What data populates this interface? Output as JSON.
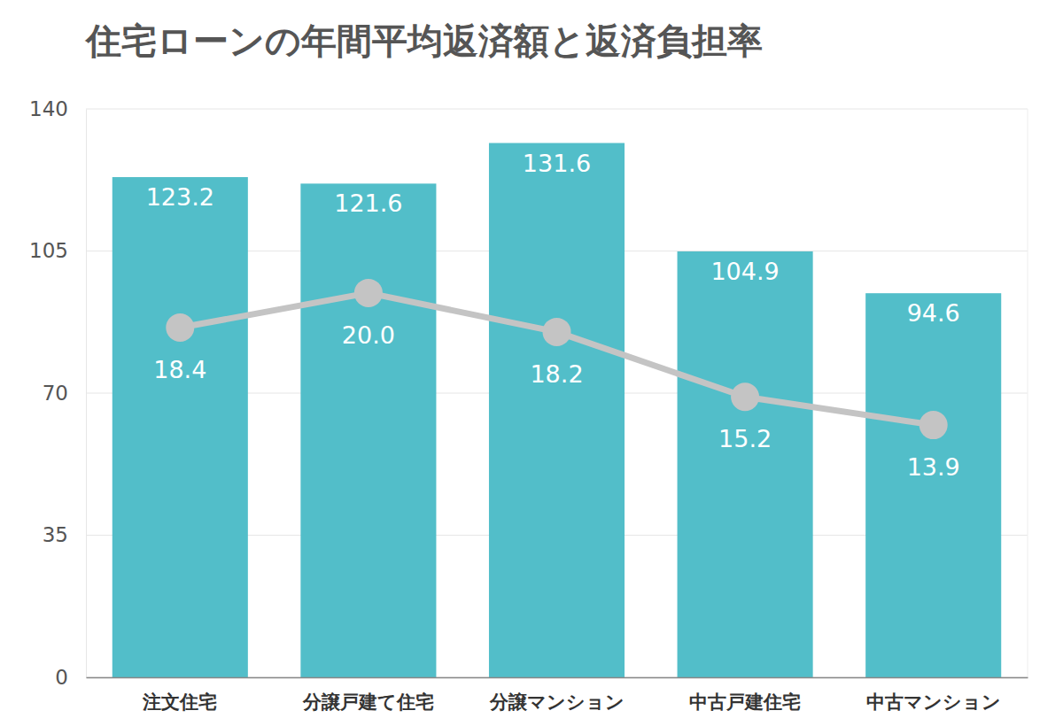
{
  "chart_data": {
    "type": "bar",
    "title": "住宅ローンの年間平均返済額と返済負担率",
    "categories": [
      "注文住宅",
      "分譲戸建て住宅",
      "分譲マンション",
      "中古戸建住宅",
      "中古マンション"
    ],
    "series": [
      {
        "type": "bar",
        "color": "#52bec9",
        "values": [
          123.2,
          121.6,
          131.6,
          104.9,
          94.6
        ],
        "value_labels": [
          "123.2",
          "121.6",
          "131.6",
          "104.9",
          "94.6"
        ]
      },
      {
        "type": "line",
        "axis": "y2",
        "color": "#c4c4c4",
        "marker": "circle",
        "values": [
          18.4,
          20.0,
          18.2,
          15.2,
          13.9
        ],
        "value_labels": [
          "18.4",
          "20.0",
          "18.2",
          "15.2",
          "13.9"
        ]
      }
    ],
    "ylim": [
      0,
      140
    ],
    "yticks": [
      0,
      35,
      70,
      105,
      140
    ],
    "y2lim": [
      2.25,
      28.5
    ],
    "grid": true,
    "data_labels": true,
    "tick_labels": "y"
  }
}
